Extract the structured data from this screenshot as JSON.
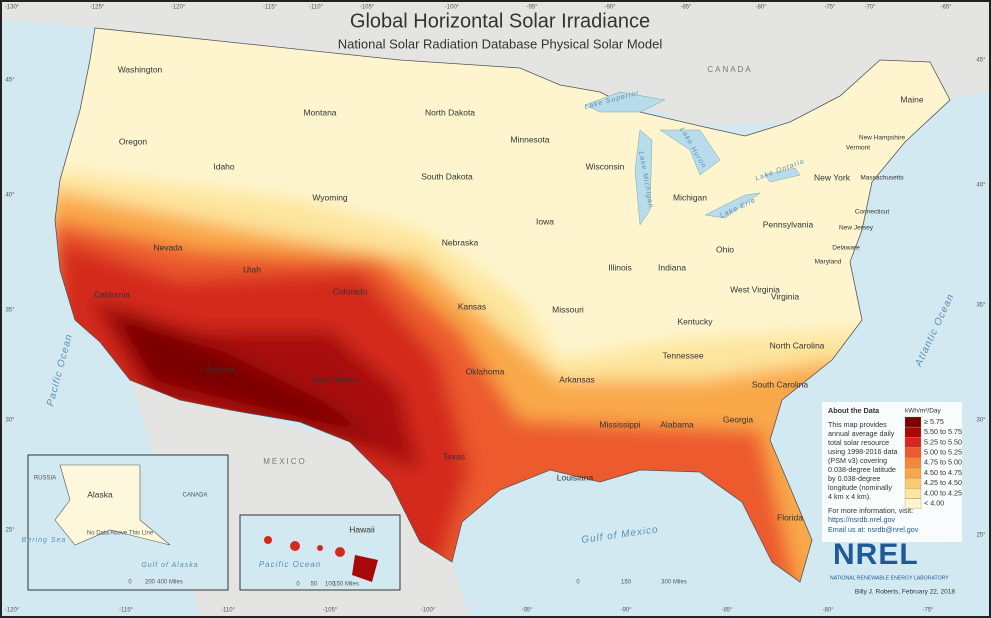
{
  "title": "Global Horizontal Solar Irradiance",
  "subtitle": "National Solar Radiation Database Physical Solar Model",
  "states": [
    "Washington",
    "Oregon",
    "California",
    "Nevada",
    "Idaho",
    "Montana",
    "Wyoming",
    "Utah",
    "Arizona",
    "Colorado",
    "New Mexico",
    "North Dakota",
    "South Dakota",
    "Nebraska",
    "Kansas",
    "Oklahoma",
    "Texas",
    "Minnesota",
    "Iowa",
    "Missouri",
    "Arkansas",
    "Louisiana",
    "Wisconsin",
    "Illinois",
    "Michigan",
    "Indiana",
    "Ohio",
    "Kentucky",
    "Tennessee",
    "Mississippi",
    "Alabama",
    "Georgia",
    "Florida",
    "South Carolina",
    "North Carolina",
    "Virginia",
    "West Virginia",
    "Pennsylvania",
    "New York",
    "Maine",
    "Vermont",
    "New Hampshire",
    "Massachusetts",
    "Connecticut",
    "New Jersey",
    "Maryland",
    "Delaware"
  ],
  "water": [
    "Pacific Ocean",
    "Atlantic Ocean",
    "Gulf of Mexico",
    "Lake Superior",
    "Lake Michigan",
    "Lake Huron",
    "Lake Erie",
    "Lake Ontario"
  ],
  "countries": [
    "CANADA",
    "MEXICO"
  ],
  "graticule": {
    "top": [
      "-130°",
      "-125°",
      "-120°",
      "-115°",
      "-110°",
      "-105°",
      "-100°",
      "-95°",
      "-90°",
      "-85°",
      "-80°",
      "-75°",
      "-70°",
      "-65°"
    ],
    "bottom": [
      "-120°",
      "-115°",
      "-110°",
      "-105°",
      "-100°",
      "-95°",
      "-90°",
      "-85°",
      "-80°",
      "-75°"
    ],
    "left": [
      "45°",
      "40°",
      "35°",
      "30°",
      "25°"
    ],
    "right": [
      "45°",
      "40°",
      "35°",
      "30°",
      "25°"
    ]
  },
  "alaska_inset": {
    "title": "Alaska",
    "labels": [
      "RUSSIA",
      "CANADA",
      "Gulf of Alaska",
      "Bering Sea",
      "No Data Above This Line"
    ],
    "scale": [
      "0",
      "200",
      "400 Miles"
    ]
  },
  "hawaii_inset": {
    "title": "Hawaii",
    "labels": [
      "Pacific Ocean"
    ],
    "scale": [
      "0",
      "50",
      "100",
      "150 Miles"
    ]
  },
  "scale": [
    "0",
    "150",
    "300 Miles"
  ],
  "legend": {
    "heading": "About the Data",
    "unit": "kWh/m²/Day",
    "classes": [
      {
        "label": "≥ 5.75",
        "color": "#7a0000"
      },
      {
        "label": "5.50 to 5.75",
        "color": "#a80808"
      },
      {
        "label": "5.25 to 5.50",
        "color": "#d42a1c"
      },
      {
        "label": "5.00 to 5.25",
        "color": "#ec5a2e"
      },
      {
        "label": "4.75 to 5.00",
        "color": "#f5863a"
      },
      {
        "label": "4.50 to 4.75",
        "color": "#f9a848"
      },
      {
        "label": "4.25 to 4.50",
        "color": "#fcc96e"
      },
      {
        "label": "4.00 to 4.25",
        "color": "#fde59c"
      },
      {
        "label": "< 4.00",
        "color": "#fef5cf"
      }
    ],
    "about": [
      "This map provides",
      "annual average daily",
      "total solar resource",
      "using 1998-2016 data",
      "(PSM v3) covering",
      "0.038-degree latitude",
      "by 0.038-degree",
      "longitude (nominally",
      "4 km x 4 km)."
    ],
    "more": "For more information, visit:",
    "url": "https://nsrdb.nrel.gov",
    "email": "Email us at: nsrdb@nrel.gov"
  },
  "logo": {
    "name": "NREL",
    "org": "NATIONAL RENEWABLE ENERGY LABORATORY"
  },
  "credit": "Billy J. Roberts, February 22, 2018"
}
